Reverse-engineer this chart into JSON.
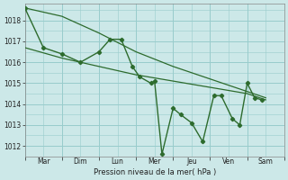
{
  "background_color": "#cce8e8",
  "grid_color": "#99cccc",
  "line_color": "#2d6b2d",
  "x_labels": [
    "Mar",
    "Dim",
    "Lun",
    "Mer",
    "Jeu",
    "Ven",
    "Sam"
  ],
  "xlabel": "Pression niveau de la mer( hPa )",
  "ylim": [
    1011.5,
    1018.8
  ],
  "yticks": [
    1012,
    1013,
    1014,
    1015,
    1016,
    1017,
    1018
  ],
  "num_days": 7,
  "series_main": [
    [
      0.0,
      1018.6
    ],
    [
      0.5,
      1016.7
    ],
    [
      1.0,
      1016.4
    ],
    [
      1.5,
      1016.0
    ],
    [
      2.0,
      1016.5
    ],
    [
      2.3,
      1017.1
    ],
    [
      2.6,
      1017.1
    ],
    [
      2.9,
      1015.8
    ],
    [
      3.1,
      1015.3
    ],
    [
      3.4,
      1015.0
    ],
    [
      3.5,
      1015.1
    ],
    [
      3.7,
      1011.6
    ],
    [
      4.0,
      1013.8
    ],
    [
      4.2,
      1013.5
    ],
    [
      4.5,
      1013.1
    ],
    [
      4.8,
      1012.2
    ],
    [
      5.1,
      1014.4
    ],
    [
      5.3,
      1014.4
    ],
    [
      5.6,
      1013.3
    ],
    [
      5.8,
      1013.0
    ],
    [
      6.0,
      1015.0
    ],
    [
      6.2,
      1014.3
    ],
    [
      6.4,
      1014.2
    ]
  ],
  "series_upper": [
    [
      0.0,
      1018.6
    ],
    [
      1.0,
      1018.2
    ],
    [
      2.0,
      1017.4
    ],
    [
      3.0,
      1016.5
    ],
    [
      4.0,
      1015.8
    ],
    [
      5.0,
      1015.2
    ],
    [
      6.0,
      1014.6
    ],
    [
      6.5,
      1014.3
    ]
  ],
  "series_lower": [
    [
      0.0,
      1016.7
    ],
    [
      1.0,
      1016.2
    ],
    [
      2.0,
      1015.8
    ],
    [
      3.0,
      1015.4
    ],
    [
      4.0,
      1015.1
    ],
    [
      5.0,
      1014.8
    ],
    [
      6.0,
      1014.5
    ],
    [
      6.5,
      1014.2
    ]
  ]
}
